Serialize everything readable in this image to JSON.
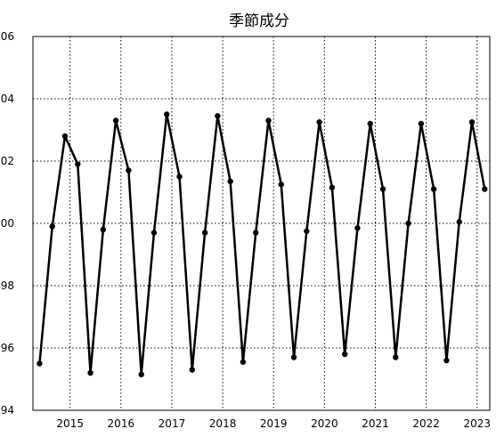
{
  "chart_data": {
    "type": "line",
    "title": "季節成分",
    "xlabel": "",
    "ylabel": "",
    "xlim": [
      2014.27,
      2023.25
    ],
    "ylim": [
      94,
      106
    ],
    "x_ticks": [
      "2015",
      "2016",
      "2017",
      "2018",
      "2019",
      "2020",
      "2021",
      "2022",
      "2023"
    ],
    "y_ticks": [
      "94",
      "96",
      "98",
      "00",
      "02",
      "04",
      "06"
    ],
    "grid": true,
    "series": [
      {
        "x": [
          2014.4,
          2014.65,
          2014.9,
          2015.15,
          2015.4,
          2015.65,
          2015.9,
          2016.15,
          2016.4,
          2016.65,
          2016.9,
          2017.15,
          2017.4,
          2017.65,
          2017.9,
          2018.15,
          2018.4,
          2018.65,
          2018.9,
          2019.15,
          2019.4,
          2019.65,
          2019.9,
          2020.15,
          2020.4,
          2020.65,
          2020.9,
          2021.15,
          2021.4,
          2021.65,
          2021.9,
          2022.15,
          2022.4,
          2022.65,
          2022.9,
          2023.15
        ],
        "values": [
          95.5,
          99.9,
          102.8,
          101.9,
          95.2,
          99.8,
          103.3,
          101.7,
          95.15,
          99.7,
          103.5,
          101.5,
          95.3,
          99.7,
          103.45,
          101.35,
          95.55,
          99.7,
          103.3,
          101.25,
          95.7,
          99.75,
          103.25,
          101.15,
          95.8,
          99.85,
          103.2,
          101.1,
          95.7,
          100.0,
          103.2,
          101.1,
          95.6,
          100.05,
          103.25,
          101.1
        ]
      }
    ]
  }
}
